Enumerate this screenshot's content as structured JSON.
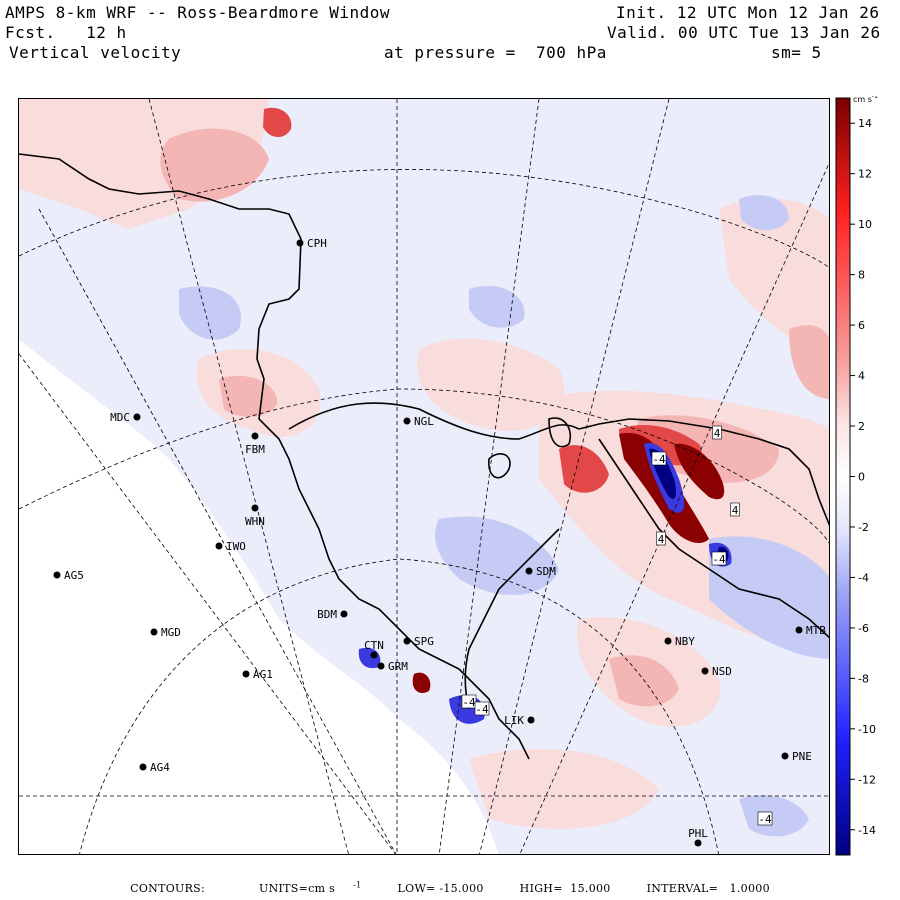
{
  "header": {
    "title": "AMPS 8-km WRF -- Ross-Beardmore Window",
    "fcst_label": "Fcst.",
    "fcst_value": "12 h",
    "variable": "Vertical velocity",
    "init": "Init. 12 UTC Mon 12 Jan 26",
    "valid": "Valid. 00 UTC Tue 13 Jan 26",
    "pressure": "at pressure =  700 hPa",
    "smoothing": "sm= 5"
  },
  "colorbar": {
    "units_label": "cm s",
    "units_exp": "-1",
    "ticks": [
      "14",
      "12",
      "10",
      "8",
      "6",
      "4",
      "2",
      "0",
      "-2",
      "-4",
      "-6",
      "-8",
      "-10",
      "-12",
      "-14"
    ],
    "min": -15,
    "max": 15,
    "colors": {
      "max": "#7a0000",
      "high": "#ff2020",
      "mid_pos": "#f7a0a0",
      "low_pos": "#fbe3e3",
      "zero": "#ffffff",
      "low_neg": "#e3e6fb",
      "mid_neg": "#a0a8f5",
      "low": "#2020ff",
      "min": "#000080"
    }
  },
  "stations": [
    {
      "id": "CPH",
      "label": "CPH"
    },
    {
      "id": "MDC",
      "label": "MDC"
    },
    {
      "id": "FBM",
      "label": "FBM"
    },
    {
      "id": "NGL",
      "label": "NGL"
    },
    {
      "id": "WHN",
      "label": "WHN"
    },
    {
      "id": "IWO",
      "label": "IWO"
    },
    {
      "id": "AG5",
      "label": "AG5"
    },
    {
      "id": "SDM",
      "label": "SDM"
    },
    {
      "id": "BDM",
      "label": "BDM"
    },
    {
      "id": "MGD",
      "label": "MGD"
    },
    {
      "id": "SPG",
      "label": "SPG"
    },
    {
      "id": "CTN",
      "label": "CTN"
    },
    {
      "id": "GRM",
      "label": "GRM"
    },
    {
      "id": "AG1",
      "label": "AG1"
    },
    {
      "id": "NBY",
      "label": "NBY"
    },
    {
      "id": "NSD",
      "label": "NSD"
    },
    {
      "id": "MTB",
      "label": "MTB"
    },
    {
      "id": "LIK",
      "label": "LIK"
    },
    {
      "id": "AG4",
      "label": "AG4"
    },
    {
      "id": "PNE",
      "label": "PNE"
    },
    {
      "id": "PHL",
      "label": "PHL"
    }
  ],
  "contour_labels": [
    "4",
    "4",
    "4",
    "-4",
    "-4",
    "-4",
    "-4",
    "-4"
  ],
  "footer": {
    "contours": "CONTOURS:",
    "units": "UNITS=cm s",
    "units_exp": "-1",
    "low": "LOW= -15.000",
    "high": "HIGH=  15.000",
    "interval": "INTERVAL=   1.0000"
  }
}
